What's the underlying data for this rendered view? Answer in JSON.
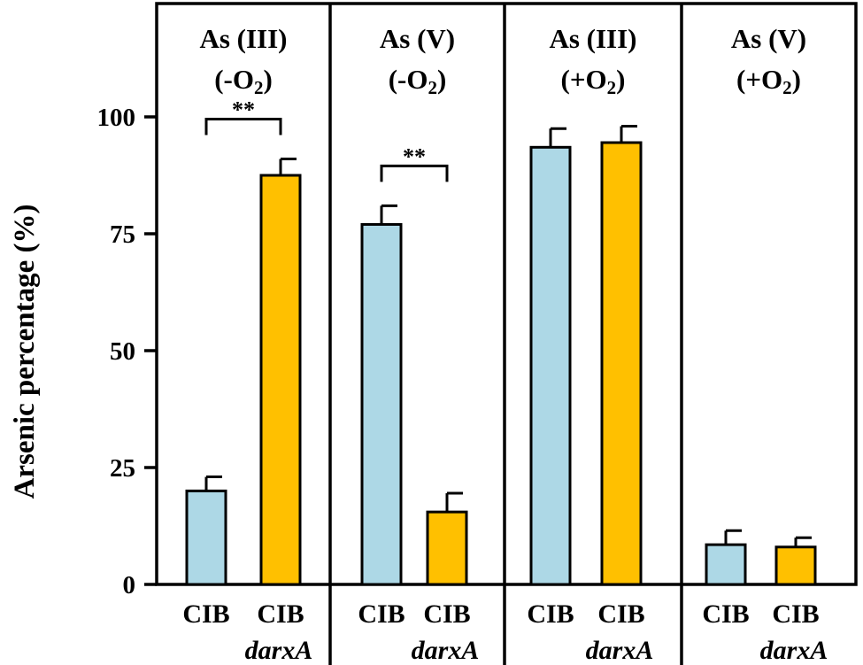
{
  "chart_data": {
    "type": "bar",
    "ylabel": "Arsenic percentage (%)",
    "ylim": [
      0,
      120
    ],
    "yticks": [
      0,
      25,
      50,
      75,
      100
    ],
    "yticks_text": [
      "0",
      "25",
      "50",
      "75",
      "100"
    ],
    "grid": false,
    "legend": "none",
    "colors": {
      "CIB": "#add8e6",
      "CIB darxA": "#ffc000",
      "edge": "#000000"
    },
    "panels": [
      {
        "title_main": [
          "As (III)",
          "(-O"
        ],
        "title_sub": "2",
        "title_close": ")",
        "bars": [
          {
            "label": "CIB",
            "sublabel": "",
            "series": "CIB",
            "value": 20,
            "error": 3
          },
          {
            "label": "CIB",
            "sublabel": "darxA",
            "series": "CIB darxA",
            "value": 87.5,
            "error": 3.5
          }
        ],
        "significance": "**"
      },
      {
        "title_main": [
          "As (V)",
          "(-O"
        ],
        "title_sub": "2",
        "title_close": ")",
        "bars": [
          {
            "label": "CIB",
            "sublabel": "",
            "series": "CIB",
            "value": 77,
            "error": 4
          },
          {
            "label": "CIB",
            "sublabel": "darxA",
            "series": "CIB darxA",
            "value": 15.5,
            "error": 4
          }
        ],
        "significance": "**"
      },
      {
        "title_main": [
          "As (III)",
          "(+O"
        ],
        "title_sub": "2",
        "title_close": ")",
        "bars": [
          {
            "label": "CIB",
            "sublabel": "",
            "series": "CIB",
            "value": 93.5,
            "error": 4
          },
          {
            "label": "CIB",
            "sublabel": "darxA",
            "series": "CIB darxA",
            "value": 94.5,
            "error": 3.5
          }
        ],
        "significance": ""
      },
      {
        "title_main": [
          "As (V)",
          "(+O"
        ],
        "title_sub": "2",
        "title_close": ")",
        "bars": [
          {
            "label": "CIB",
            "sublabel": "",
            "series": "CIB",
            "value": 8.5,
            "error": 3
          },
          {
            "label": "CIB",
            "sublabel": "darxA",
            "series": "CIB darxA",
            "value": 8,
            "error": 2
          }
        ],
        "significance": ""
      }
    ]
  }
}
